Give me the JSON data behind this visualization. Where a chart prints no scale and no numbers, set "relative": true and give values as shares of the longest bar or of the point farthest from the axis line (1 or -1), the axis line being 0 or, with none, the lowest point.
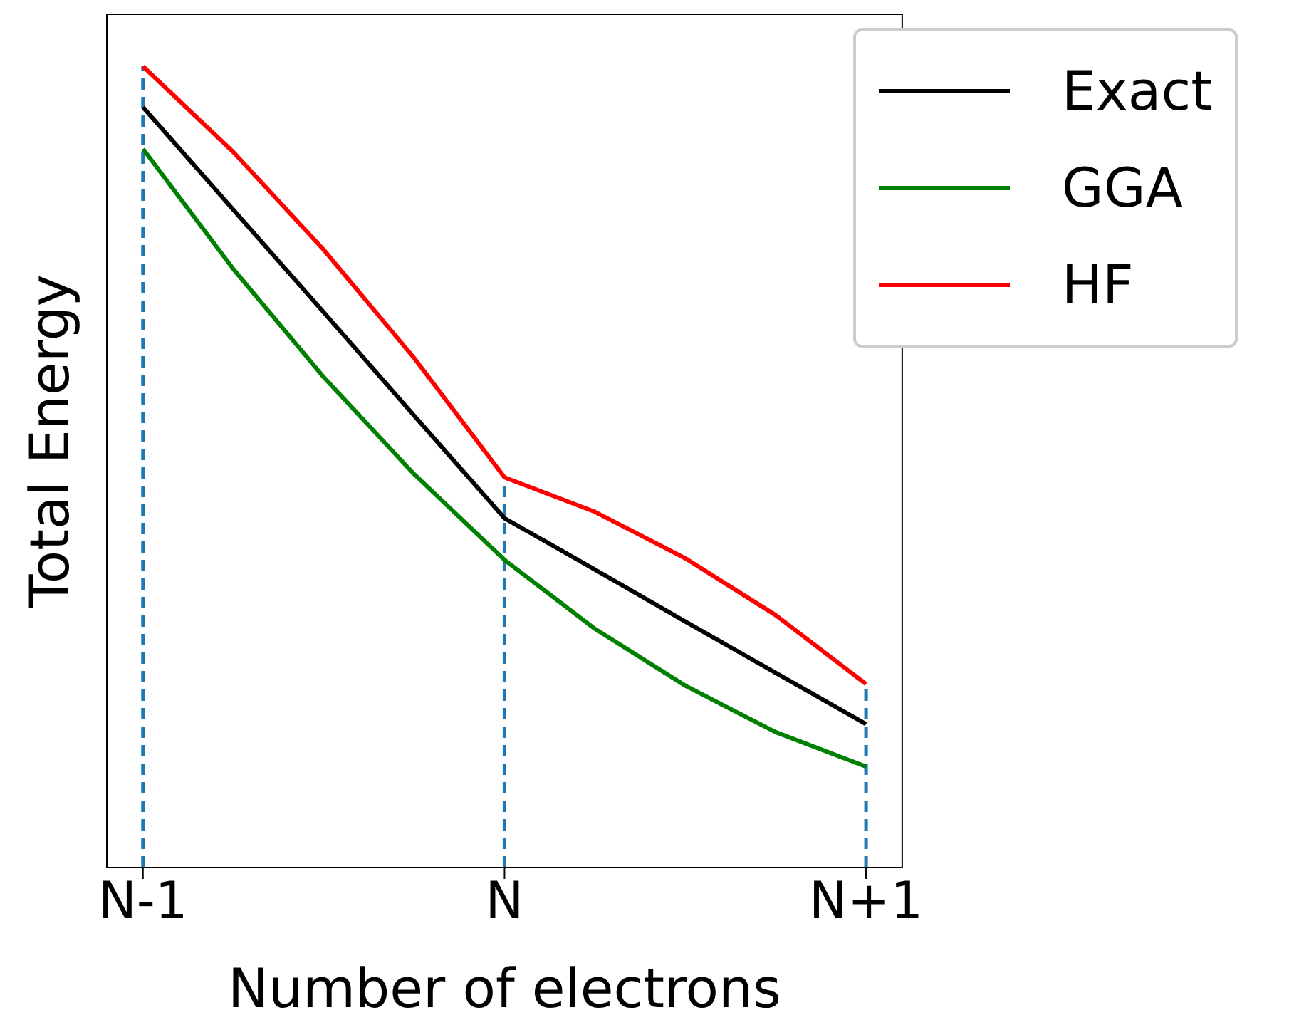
{
  "chart_data": {
    "type": "line",
    "relative": true,
    "xlabel": "Number of electrons",
    "ylabel": "Total Energy",
    "categories": [
      "N-1",
      null,
      null,
      null,
      "N",
      null,
      null,
      null,
      "N+1"
    ],
    "series": [
      {
        "name": "Exact",
        "color": "#000000",
        "values": [
          0.949,
          0.821,
          0.693,
          0.564,
          0.436,
          0.372,
          0.307,
          0.243,
          0.179
        ]
      },
      {
        "name": "GGA",
        "color": "#008000",
        "values": [
          0.897,
          0.747,
          0.612,
          0.491,
          0.384,
          0.298,
          0.227,
          0.169,
          0.126
        ]
      },
      {
        "name": "HF",
        "color": "#ff0000",
        "values": [
          1.0,
          0.893,
          0.771,
          0.636,
          0.487,
          0.444,
          0.386,
          0.315,
          0.229
        ]
      }
    ],
    "ref_lines": [
      {
        "axis": "x",
        "value": "N-1",
        "color": "#1f77b4",
        "line_style": "dashed"
      },
      {
        "axis": "x",
        "value": "N",
        "color": "#1f77b4",
        "line_style": "dashed"
      },
      {
        "axis": "x",
        "value": "N+1",
        "color": "#1f77b4",
        "line_style": "dashed"
      }
    ],
    "legend": "top right",
    "grid": false,
    "marker": "none",
    "line_style": "solid"
  }
}
